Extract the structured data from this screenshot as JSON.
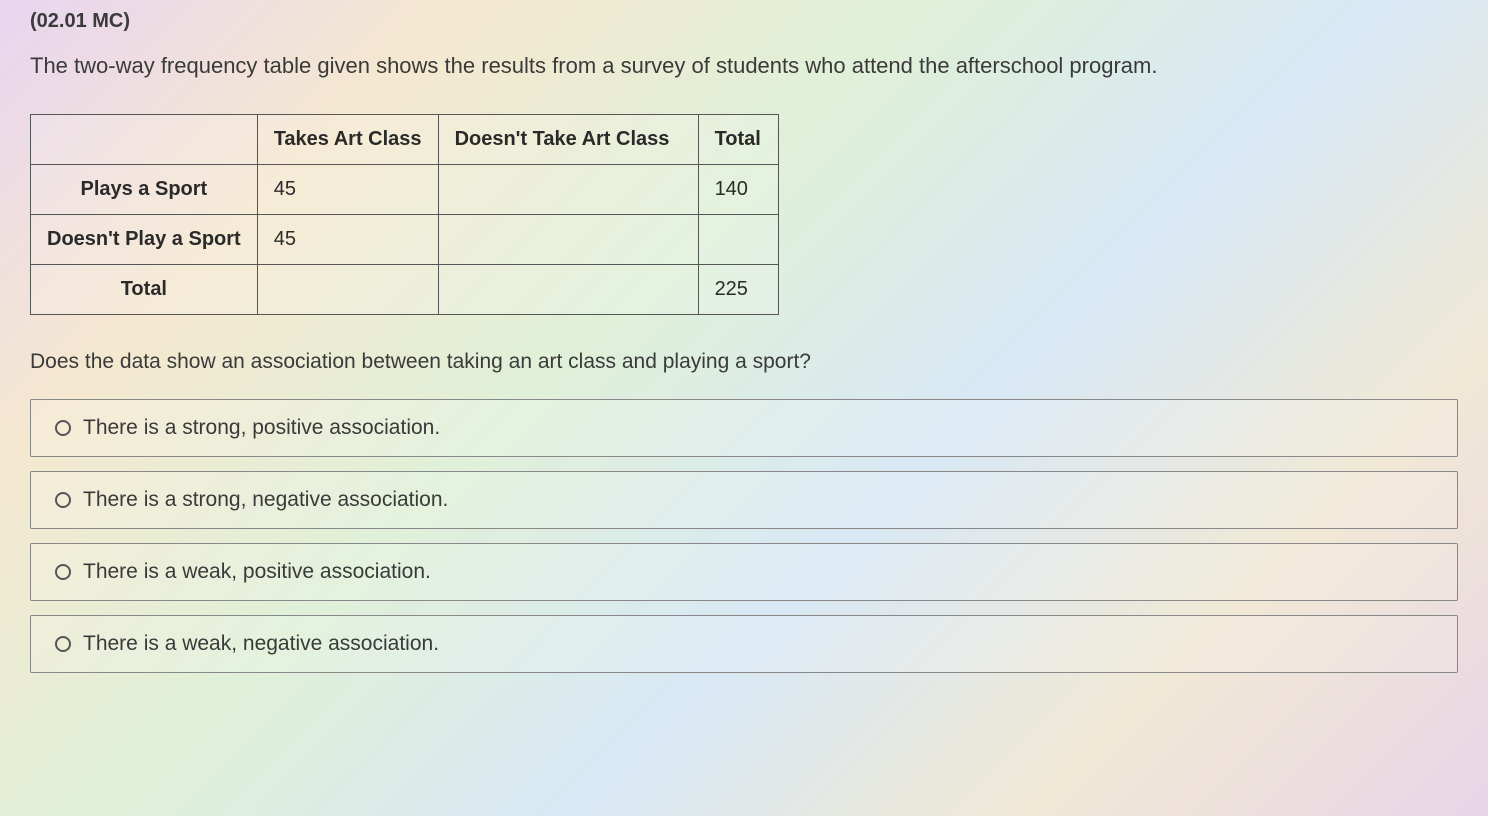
{
  "question_id": "(02.01 MC)",
  "question_text": "The two-way frequency table given shows the results from a survey of students who attend the afterschool program.",
  "table": {
    "columns": [
      "",
      "Takes Art Class",
      "Doesn't Take Art Class",
      "Total"
    ],
    "rows": [
      {
        "label": "Plays a Sport",
        "art": "45",
        "noart": "",
        "total": "140"
      },
      {
        "label": "Doesn't Play a Sport",
        "art": "45",
        "noart": "",
        "total": ""
      },
      {
        "label": "Total",
        "art": "",
        "noart": "",
        "total": "225"
      }
    ],
    "border_color": "#555555",
    "font_size": 20
  },
  "followup_text": "Does the data show an association between taking an art class and playing a sport?",
  "options": [
    "There is a strong, positive association.",
    "There is a strong, negative association.",
    "There is a weak, positive association.",
    "There is a weak, negative association."
  ],
  "colors": {
    "text": "#3a3a3a",
    "border": "#555555",
    "option_border": "#888888"
  }
}
